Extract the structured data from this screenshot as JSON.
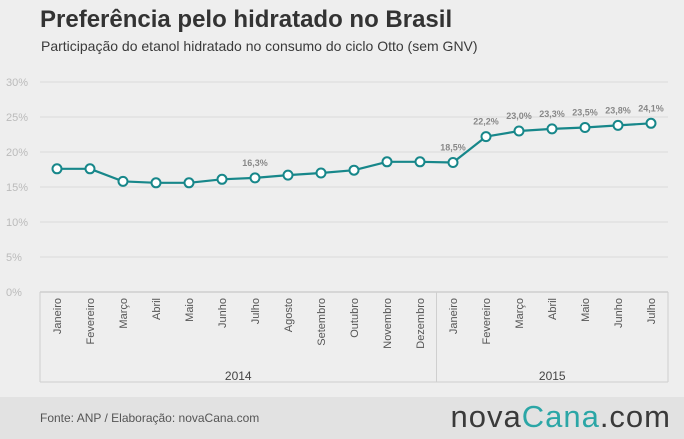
{
  "header": {
    "title": "Preferência pelo hidratado no Brasil",
    "subtitle": "Participação do etanol hidratado no consumo do ciclo Otto (sem GNV)"
  },
  "footer": {
    "source": "Fonte: ANP / Elaboração: novaCana.com",
    "brand_part1": "nova",
    "brand_part2": "Cana",
    "brand_part3": ".com"
  },
  "colors": {
    "line": "#17878a",
    "marker_fill": "#ffffff",
    "grid": "#d9d9d9",
    "axis_text": "#bbbbbb",
    "label_text": "#888888",
    "brand_accent": "#2ba6a6"
  },
  "chart_data": {
    "type": "line",
    "title": "Preferência pelo hidratado no Brasil",
    "subtitle": "Participação do etanol hidratado no consumo do ciclo Otto (sem GNV)",
    "categories": [
      "Janeiro",
      "Fevereiro",
      "Março",
      "Abril",
      "Maio",
      "Junho",
      "Julho",
      "Agosto",
      "Setembro",
      "Outubro",
      "Novembro",
      "Dezembro",
      "Janeiro",
      "Fevereiro",
      "Março",
      "Abril",
      "Maio",
      "Junho",
      "Julho"
    ],
    "groups": [
      {
        "label": "2014",
        "count": 12
      },
      {
        "label": "2015",
        "count": 7
      }
    ],
    "values": [
      17.6,
      17.6,
      15.8,
      15.6,
      15.6,
      16.1,
      16.3,
      16.7,
      17.0,
      17.4,
      18.6,
      18.6,
      18.5,
      22.2,
      23.0,
      23.3,
      23.5,
      23.8,
      24.1
    ],
    "data_labels": [
      {
        "index": 6,
        "text": "16,3%"
      },
      {
        "index": 12,
        "text": "18,5%"
      },
      {
        "index": 13,
        "text": "22,2%"
      },
      {
        "index": 14,
        "text": "23,0%"
      },
      {
        "index": 15,
        "text": "23,3%"
      },
      {
        "index": 16,
        "text": "23,5%"
      },
      {
        "index": 17,
        "text": "23,8%"
      },
      {
        "index": 18,
        "text": "24,1%"
      }
    ],
    "y_ticks": [
      0,
      5,
      10,
      15,
      20,
      25,
      30
    ],
    "y_tick_labels": [
      "0%",
      "5%",
      "10%",
      "15%",
      "20%",
      "25%",
      "30%"
    ],
    "ylim": [
      0,
      30
    ],
    "grid": true,
    "legend": "none"
  }
}
